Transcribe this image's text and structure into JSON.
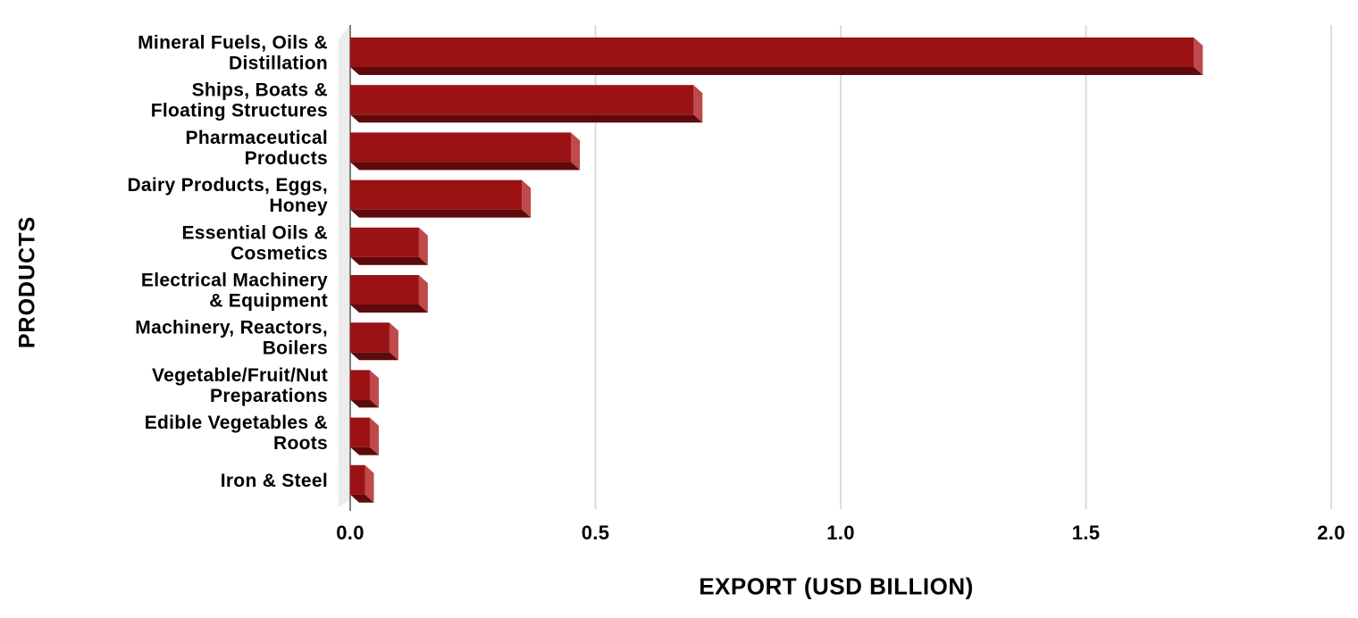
{
  "page": {
    "background": "#FFFFFF"
  },
  "chart_data": {
    "type": "bar",
    "orientation": "horizontal",
    "effect": "3d-beveled-bars",
    "title": "",
    "xlabel": "EXPORT (USD BILLION)",
    "ylabel": "PRODUCTS",
    "categories": [
      "Mineral Fuels, Oils &\nDistillation",
      "Ships, Boats &\nFloating Structures",
      "Pharmaceutical\nProducts",
      "Dairy Products, Eggs,\nHoney",
      "Essential Oils &\nCosmetics",
      "Electrical Machinery\n& Equipment",
      "Machinery, Reactors,\nBoilers",
      "Vegetable/Fruit/Nut\nPreparations",
      "Edible Vegetables &\nRoots",
      "Iron & Steel"
    ],
    "values": [
      1.72,
      0.7,
      0.45,
      0.35,
      0.14,
      0.14,
      0.08,
      0.04,
      0.04,
      0.03
    ],
    "x_ticks": [
      "0.0",
      "0.5",
      "1.0",
      "1.5",
      "2.0"
    ],
    "x_tick_values": [
      0,
      0.5,
      1.0,
      1.5,
      2.0
    ],
    "xlim": [
      0,
      2.0
    ],
    "grid": "vertical-gridlines",
    "legend": "none",
    "colors": {
      "bar_face": "#9B1215",
      "bar_side": "#BE4A4C",
      "bar_bottom": "#5E0A0C",
      "wall": "#ECECEC",
      "gridline": "#DCDCDC",
      "axis_line": "#7D7D7D",
      "text": "#000000"
    }
  }
}
